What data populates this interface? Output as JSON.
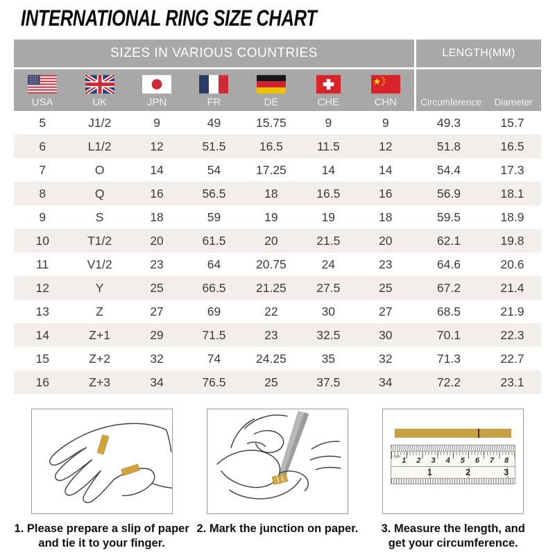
{
  "title": "INTERNATIONAL RING SIZE CHART",
  "table": {
    "group_headers": {
      "left": "SIZES IN VARIOUS COUNTRIES",
      "right": "LENGTH(MM)"
    },
    "columns": [
      {
        "code": "USA",
        "icon": "usa-flag-icon"
      },
      {
        "code": "UK",
        "icon": "uk-flag-icon"
      },
      {
        "code": "JPN",
        "icon": "japan-flag-icon"
      },
      {
        "code": "FR",
        "icon": "france-flag-icon"
      },
      {
        "code": "DE",
        "icon": "germany-flag-icon"
      },
      {
        "code": "CHE",
        "icon": "switzerland-flag-icon"
      },
      {
        "code": "CHN",
        "icon": "china-flag-icon"
      }
    ],
    "length_columns": [
      "Circumference",
      "Diameter"
    ],
    "rows": [
      [
        "5",
        "J1/2",
        "9",
        "49",
        "15.75",
        "9",
        "9",
        "49.3",
        "15.7"
      ],
      [
        "6",
        "L1/2",
        "12",
        "51.5",
        "16.5",
        "11.5",
        "12",
        "51.8",
        "16.5"
      ],
      [
        "7",
        "O",
        "14",
        "54",
        "17.25",
        "14",
        "14",
        "54.4",
        "17.3"
      ],
      [
        "8",
        "Q",
        "16",
        "56.5",
        "18",
        "16.5",
        "16",
        "56.9",
        "18.1"
      ],
      [
        "9",
        "S",
        "18",
        "59",
        "19",
        "19",
        "18",
        "59.5",
        "18.9"
      ],
      [
        "10",
        "T1/2",
        "20",
        "61.5",
        "20",
        "21.5",
        "20",
        "62.1",
        "19.8"
      ],
      [
        "11",
        "V1/2",
        "23",
        "64",
        "20.75",
        "24",
        "23",
        "64.6",
        "20.6"
      ],
      [
        "12",
        "Y",
        "25",
        "66.5",
        "21.25",
        "27.5",
        "25",
        "67.2",
        "21.4"
      ],
      [
        "13",
        "Z",
        "27",
        "69",
        "22",
        "30",
        "27",
        "68.5",
        "21.9"
      ],
      [
        "14",
        "Z+1",
        "29",
        "71.5",
        "23",
        "32.5",
        "30",
        "70.1",
        "22.3"
      ],
      [
        "15",
        "Z+2",
        "32",
        "74",
        "24.25",
        "35",
        "32",
        "71.3",
        "22.7"
      ],
      [
        "16",
        "Z+3",
        "34",
        "76.5",
        "25",
        "37.5",
        "34",
        "72.2",
        "23.1"
      ]
    ]
  },
  "instructions": [
    {
      "illustration": "hand-with-paper-strip",
      "lines": [
        "1. Please prepare a slip of paper",
        "and tie it to your finger."
      ]
    },
    {
      "illustration": "mark-junction-on-paper",
      "lines": [
        "2. Mark the junction on paper."
      ]
    },
    {
      "illustration": "measure-with-ruler",
      "lines": [
        "3. Measure the length, and",
        "get your circumference."
      ]
    }
  ],
  "ruler": {
    "unit": "mm",
    "mm_numbers": [
      "1",
      "2",
      "3",
      "4",
      "5",
      "6",
      "7",
      "8"
    ],
    "inch_numbers": [
      "1",
      "2",
      "3"
    ]
  },
  "colors": {
    "header_gray": "#a8a8a8",
    "row_stripe": "#f3eeeb",
    "paper_gold": "#d2a23c",
    "text_dark": "#3a3a3a"
  }
}
